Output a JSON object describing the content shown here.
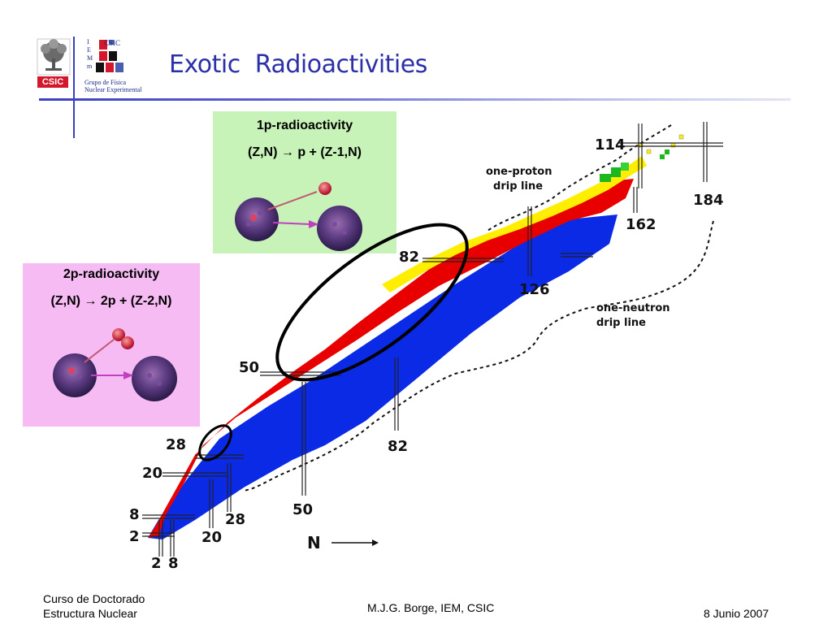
{
  "slide": {
    "title": "Exotic  Radioactivities"
  },
  "logos": {
    "csic_label": "CSIC",
    "iem_letters": [
      "I",
      "E",
      "M",
      "m"
    ],
    "iem_csic": "CSIC",
    "group_line1": "Grupo de Física",
    "group_line2": "Nuclear Experimental"
  },
  "box_1p": {
    "title": "1p-radioactivity",
    "formula": "(Z,N) → p + (Z-1,N)"
  },
  "box_2p": {
    "title": "2p-radioactivity",
    "formula": "(Z,N) → 2p + (Z-2,N)"
  },
  "chart": {
    "drip_proton": "one-proton\n  drip line",
    "drip_neutron": "one-neutron\ndrip line",
    "axis_label": "N",
    "magic_z": [
      "2",
      "8",
      "20",
      "28",
      "50",
      "82",
      "114"
    ],
    "magic_n": [
      "2",
      "8",
      "20",
      "28",
      "50",
      "82",
      "126",
      "162",
      "184"
    ]
  },
  "footer": {
    "course_line1": "Curso de Doctorado",
    "course_line2": "Estructura Nuclear",
    "author": "M.J.G. Borge, IEM, CSIC",
    "date": "8 Junio 2007"
  },
  "colors": {
    "title": "#2b2fa8",
    "proton_rich": "#e80000",
    "neutron_rich": "#0a2ae6",
    "drip_edge": "#ffee00",
    "superheavy": "#1db81d"
  }
}
